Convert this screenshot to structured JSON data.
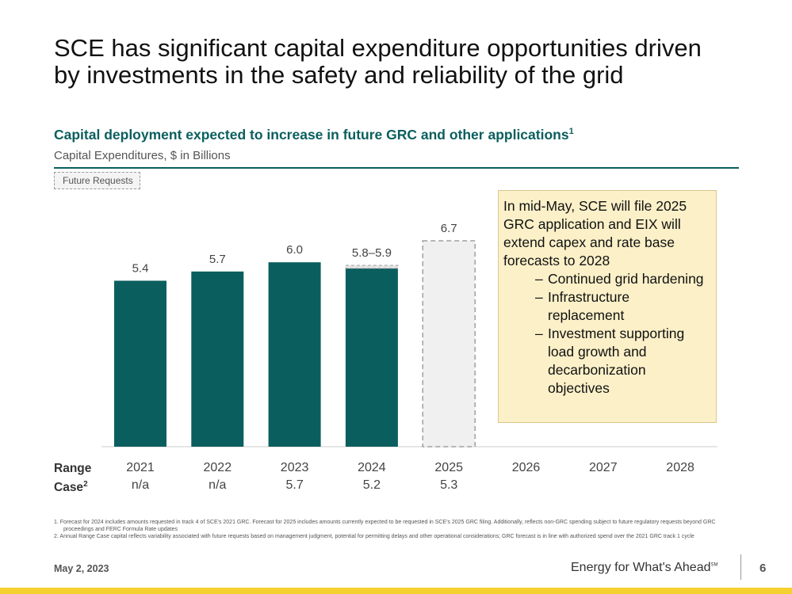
{
  "title_line1": "SCE has significant capital expenditure opportunities driven",
  "title_line2": "by investments in the safety and reliability of the grid",
  "subtitle": "Capital deployment expected to increase in future GRC and other applications",
  "subtitle_footnote": "1",
  "units_label": "Capital Expenditures, $ in Billions",
  "legend_future": "Future Requests",
  "callout": {
    "intro": "In mid-May, SCE will file 2025 GRC application and EIX will extend capex and rate base forecasts to 2028",
    "items": [
      "Continued grid hardening",
      "Infrastructure replacement",
      "Investment supporting load growth and decarbonization objectives"
    ]
  },
  "range_case_label_line1": "Range",
  "range_case_label_line2": "Case",
  "range_case_footnote": "2",
  "chart_data": {
    "type": "bar",
    "title": "Capital deployment expected to increase in future GRC and other applications",
    "ylabel": "Capital Expenditures, $ in Billions",
    "categories": [
      "2021",
      "2022",
      "2023",
      "2024",
      "2025",
      "2026",
      "2027",
      "2028"
    ],
    "values": [
      5.4,
      5.7,
      6.0,
      5.9,
      6.7,
      null,
      null,
      null
    ],
    "range_low_2024": 5.8,
    "data_labels": [
      "5.4",
      "5.7",
      "6.0",
      "5.8–5.9",
      "6.7",
      "",
      "",
      ""
    ],
    "bar_style": [
      "actual",
      "actual",
      "actual",
      "actual-range",
      "future",
      "none",
      "none",
      "none"
    ],
    "range_case": [
      "n/a",
      "n/a",
      "5.7",
      "5.2",
      "5.3",
      "",
      "",
      ""
    ],
    "ylim": [
      0,
      6.7
    ],
    "grid": false,
    "legend": "top-left",
    "colors": {
      "actual": "#0b5e5e",
      "future_fill": "#f0f0f0",
      "future_border": "#a0a0a0",
      "axis": "#cccccc",
      "label": "#444444"
    }
  },
  "footnotes": [
    "1.  Forecast for 2024 includes amounts requested in track 4 of SCE's 2021 GRC. Forecast for 2025 includes amounts currently expected to be requested in SCE's 2025 GRC filing. Additionally, reflects non-GRC spending subject to future regulatory requests beyond GRC proceedings and FERC Formula Rate updates",
    "2.  Annual Range Case capital reflects variability associated with future requests based on management judgment, potential for permitting delays and other operational considerations; GRC forecast is in line with authorized spend over the 2021 GRC track 1 cycle"
  ],
  "date": "May 2, 2023",
  "brand": "Energy for What's Ahead",
  "brand_mark": "SM",
  "page_number": "6"
}
